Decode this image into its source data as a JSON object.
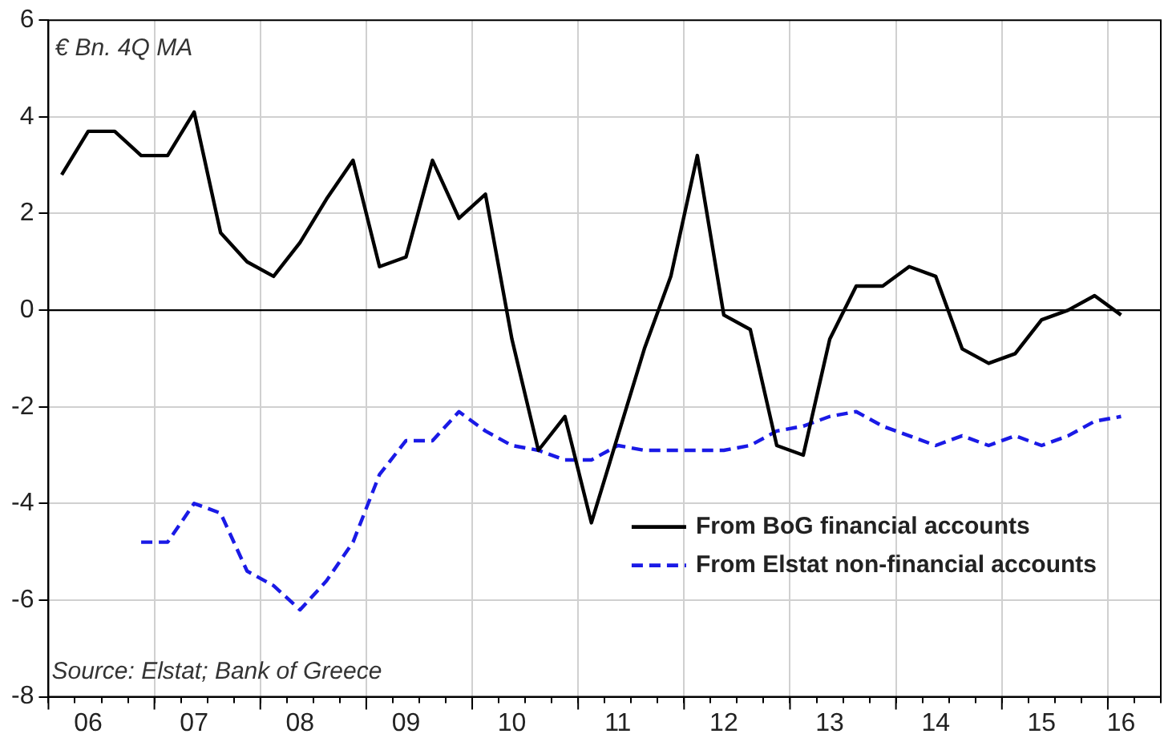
{
  "chart_data": {
    "type": "line",
    "ylabel": "€ Bn. 4Q MA",
    "annotations": [
      "Source: Elstat; Bank of Greece"
    ],
    "categories": [
      null,
      "06",
      null,
      null,
      null,
      "07",
      null,
      null,
      null,
      "08",
      null,
      null,
      null,
      "09",
      null,
      null,
      null,
      "10",
      null,
      null,
      null,
      "11",
      null,
      null,
      null,
      "12",
      null,
      null,
      null,
      "13",
      null,
      null,
      null,
      "14",
      null,
      null,
      null,
      "15",
      null,
      null,
      "16",
      null
    ],
    "ylim": [
      -8,
      6
    ],
    "yticks": [
      -8,
      -6,
      -4,
      -2,
      0,
      2,
      4,
      6
    ],
    "grid": true,
    "legend": "bottom right",
    "marker": "none",
    "ref_lines": [
      {
        "axis": "y",
        "value": 0,
        "color": "#000000"
      }
    ],
    "series": [
      {
        "name": "From BoG financial accounts",
        "color": "#000000",
        "line_style": "solid",
        "values": [
          2.8,
          3.7,
          3.7,
          3.2,
          3.2,
          4.1,
          1.6,
          1.0,
          0.7,
          1.4,
          2.3,
          3.1,
          0.9,
          1.1,
          3.1,
          1.9,
          2.4,
          -0.6,
          -2.9,
          -2.2,
          -4.4,
          -2.6,
          -0.8,
          0.7,
          3.2,
          -0.1,
          -0.4,
          -2.8,
          -3.0,
          -0.6,
          0.5,
          0.5,
          0.9,
          0.7,
          -0.8,
          -1.1,
          -0.9,
          -0.2,
          0,
          0.3,
          -0.1,
          null
        ]
      },
      {
        "name": "From Elstat non-financial accounts",
        "color": "#1a1ae6",
        "line_style": "dashed",
        "values": [
          null,
          null,
          null,
          -4.8,
          -4.8,
          -4.0,
          -4.2,
          -5.4,
          -5.7,
          -6.2,
          -5.6,
          -4.8,
          -3.4,
          -2.7,
          -2.7,
          -2.1,
          -2.5,
          -2.8,
          -2.9,
          -3.1,
          -3.1,
          -2.8,
          -2.9,
          -2.9,
          -2.9,
          -2.9,
          -2.8,
          -2.5,
          -2.4,
          -2.2,
          -2.1,
          -2.4,
          -2.6,
          -2.8,
          -2.6,
          -2.8,
          -2.6,
          -2.8,
          -2.6,
          -2.3,
          -2.2,
          null
        ]
      }
    ]
  }
}
